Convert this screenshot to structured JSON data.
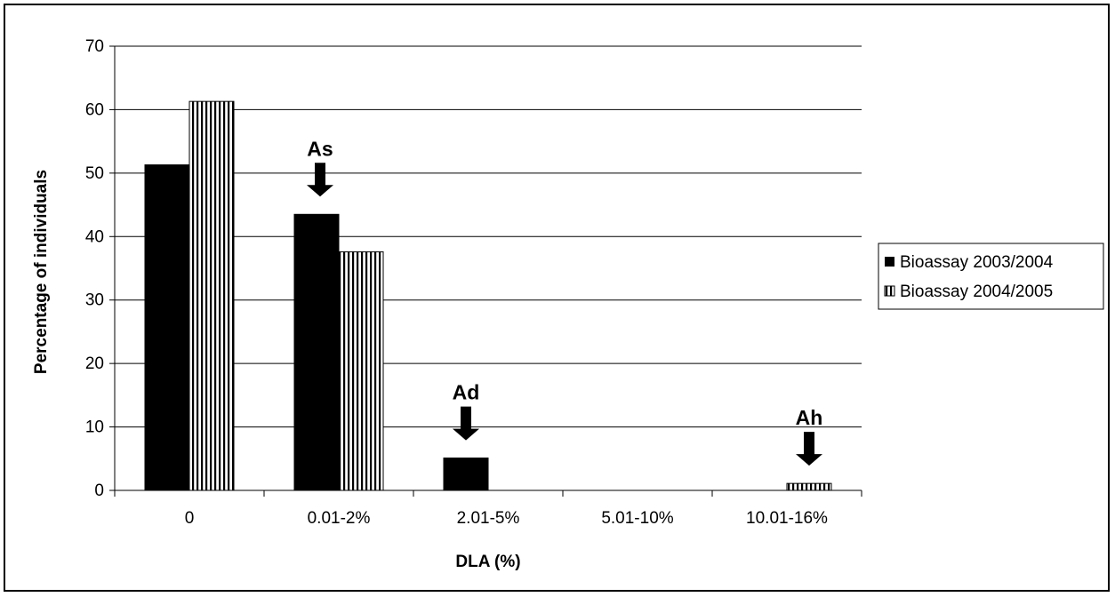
{
  "chart_data": {
    "type": "bar",
    "title": "",
    "xlabel": "DLA (%)",
    "ylabel": "Percentage of individuals",
    "categories": [
      "0",
      "0.01-2%",
      "2.01-5%",
      "5.01-10%",
      "10.01-16%"
    ],
    "ylim": [
      0,
      70
    ],
    "yticks": [
      0,
      10,
      20,
      30,
      40,
      50,
      60,
      70
    ],
    "grid": true,
    "legend_position": "right",
    "series": [
      {
        "name": "Bioassay 2003/2004",
        "values": [
          51.3,
          43.5,
          5.1,
          0,
          0
        ],
        "fill": "solid",
        "color": "#000000"
      },
      {
        "name": "Bioassay 2004/2005",
        "values": [
          61.3,
          37.6,
          0,
          0,
          1.1
        ],
        "fill": "vertical-stripes",
        "color": "#000000"
      }
    ],
    "annotations": [
      {
        "text": "As",
        "category": "0.01-2%",
        "arrow": "down"
      },
      {
        "text": "Ad",
        "category": "2.01-5%",
        "arrow": "down"
      },
      {
        "text": "Ah",
        "category": "10.01-16%",
        "arrow": "down"
      }
    ]
  }
}
